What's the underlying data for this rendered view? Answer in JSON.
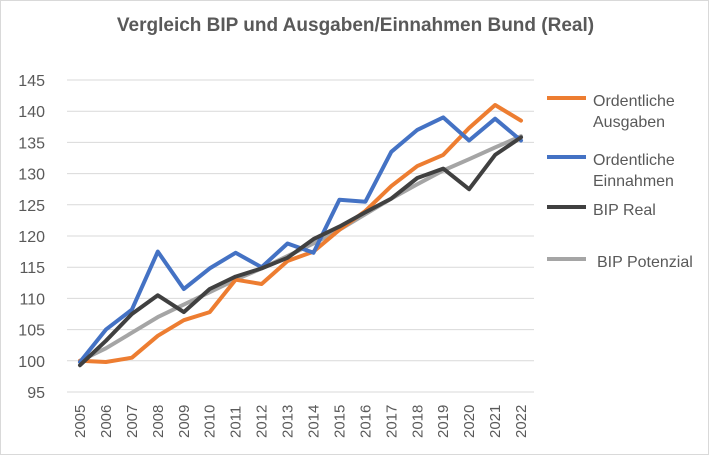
{
  "chart_data": {
    "type": "line",
    "title": "Vergleich BIP und Ausgaben/Einnahmen Bund (Real)",
    "xlabel": "",
    "ylabel": "",
    "ylim": [
      95,
      145
    ],
    "yticks": [
      95,
      100,
      105,
      110,
      115,
      120,
      125,
      130,
      135,
      140,
      145
    ],
    "grid": true,
    "legend_position": "right",
    "categories": [
      "2005",
      "2006",
      "2007",
      "2008",
      "2009",
      "2010",
      "2011",
      "2012",
      "2013",
      "2014",
      "2015",
      "2016",
      "2017",
      "2018",
      "2019",
      "2020",
      "2021",
      "2022"
    ],
    "series": [
      {
        "name": "Ordentliche Ausgaben",
        "legend_lines": [
          "Ordentliche",
          "Ausgaben"
        ],
        "color": "#ED7D31",
        "values": [
          100,
          99.8,
          100.5,
          104,
          106.5,
          107.8,
          113,
          112.3,
          116,
          117.5,
          121,
          124,
          128,
          131.2,
          133,
          137.3,
          141,
          138.5
        ]
      },
      {
        "name": "Ordentliche Einnahmen",
        "legend_lines": [
          "Ordentliche",
          "Einnahmen"
        ],
        "color": "#4472C4",
        "values": [
          99.8,
          105,
          108.2,
          117.5,
          111.5,
          114.8,
          117.3,
          115,
          118.8,
          117.3,
          125.8,
          125.5,
          133.5,
          137,
          139,
          135.3,
          138.8,
          135.3
        ]
      },
      {
        "name": "BIP Real",
        "legend_lines": [
          "BIP Real"
        ],
        "color": "#404040",
        "values": [
          99.3,
          103.2,
          107.5,
          110.5,
          107.8,
          111.5,
          113.5,
          114.8,
          116.5,
          119.5,
          121.5,
          123.8,
          126,
          129.3,
          130.8,
          127.5,
          133,
          135.8
        ]
      },
      {
        "name": "BIP Potenzial",
        "legend_lines": [
          "BIP Potenzial"
        ],
        "color": "#A5A5A5",
        "values": [
          100,
          102,
          104.5,
          107,
          109,
          111,
          113,
          114.8,
          116.8,
          118.8,
          121,
          123.5,
          126,
          128.3,
          130.5,
          132.3,
          134.2,
          136
        ]
      }
    ]
  }
}
